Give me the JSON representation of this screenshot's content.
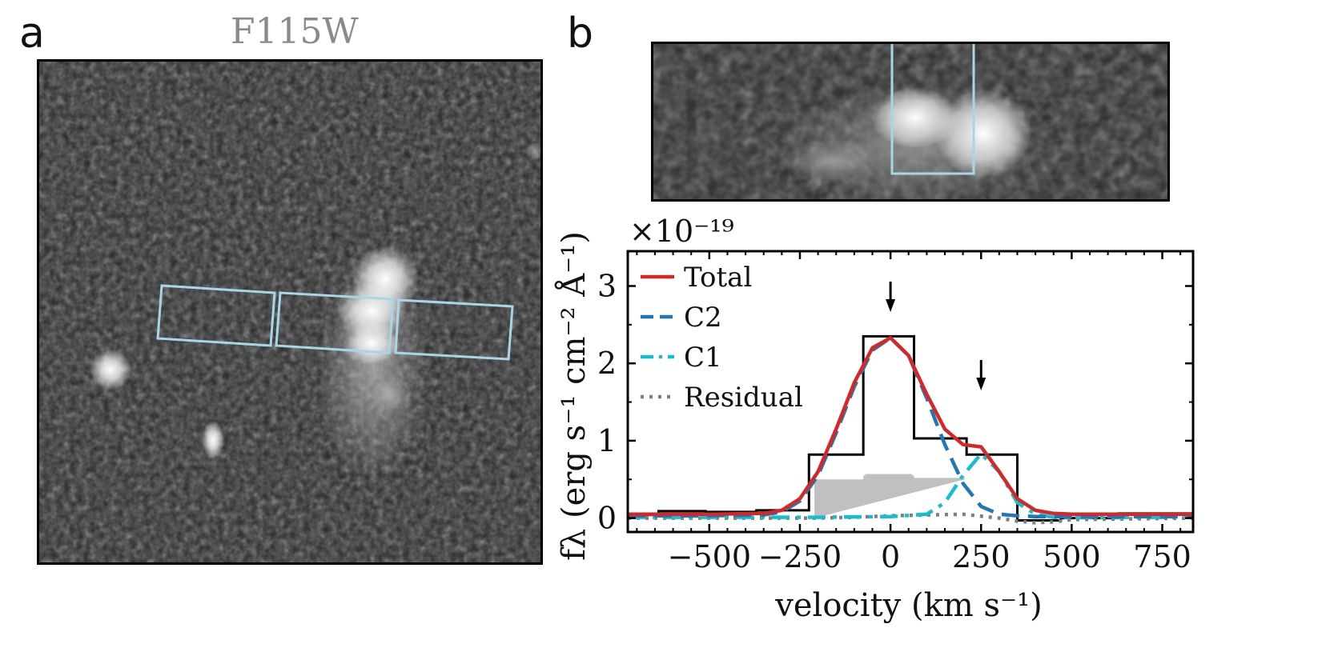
{
  "panel_a": {
    "letter": "a",
    "filter_label": "F115W"
  },
  "panel_b": {
    "letter": "b"
  },
  "chart_data": {
    "type": "line",
    "xlabel": "velocity (km s⁻¹)",
    "ylabel": "fλ (erg s⁻¹ cm⁻² Å⁻¹)",
    "y_multiplier": "×10⁻¹⁹",
    "xlim": [
      -725,
      835
    ],
    "ylim": [
      -0.18,
      3.45
    ],
    "xticks": [
      -500,
      -250,
      0,
      250,
      500,
      750
    ],
    "xtick_labels": [
      "−500",
      "−250",
      "0",
      "250",
      "500",
      "750"
    ],
    "yticks": [
      0,
      1,
      2,
      3
    ],
    "ytick_labels": [
      "0",
      "1",
      "2",
      "3"
    ],
    "legend_position": "top-left",
    "grid": false,
    "observed_histogram": {
      "edges": [
        -725,
        -640,
        -510,
        -370,
        -225,
        -75,
        65,
        210,
        350,
        470,
        630,
        835
      ],
      "values": [
        0.04,
        0.09,
        0.08,
        0.1,
        0.82,
        2.35,
        1.03,
        0.82,
        -0.03,
        0.0,
        0.06
      ]
    },
    "error_band": {
      "edges": [
        -210,
        -75,
        -70,
        60,
        65,
        205
      ],
      "values": [
        0.5,
        0.55,
        0.57,
        0.55,
        0.52,
        0.5
      ]
    },
    "series": [
      {
        "name": "Total",
        "color": "#d62728",
        "style": "solid",
        "x": [
          -725,
          -500,
          -350,
          -300,
          -250,
          -200,
          -150,
          -100,
          -50,
          0,
          50,
          100,
          150,
          200,
          250,
          300,
          350,
          400,
          450,
          500,
          650,
          835
        ],
        "y": [
          0.05,
          0.05,
          0.06,
          0.1,
          0.25,
          0.6,
          1.15,
          1.75,
          2.2,
          2.33,
          2.1,
          1.6,
          1.15,
          0.95,
          0.92,
          0.6,
          0.25,
          0.1,
          0.06,
          0.05,
          0.05,
          0.05
        ]
      },
      {
        "name": "C2",
        "color": "#1f77b4",
        "style": "dashed",
        "x": [
          -725,
          -500,
          -350,
          -300,
          -250,
          -200,
          -150,
          -100,
          -50,
          0,
          50,
          100,
          150,
          200,
          250,
          300,
          350,
          400,
          500,
          835
        ],
        "y": [
          0.03,
          0.03,
          0.04,
          0.08,
          0.22,
          0.55,
          1.1,
          1.7,
          2.17,
          2.33,
          2.1,
          1.55,
          0.95,
          0.45,
          0.15,
          0.05,
          0.03,
          0.02,
          0.02,
          0.02
        ]
      },
      {
        "name": "C1",
        "color": "#17becf",
        "style": "dashdot",
        "x": [
          -725,
          -200,
          0,
          100,
          150,
          200,
          250,
          300,
          350,
          400,
          450,
          835
        ],
        "y": [
          0.01,
          0.01,
          0.02,
          0.05,
          0.2,
          0.55,
          0.83,
          0.6,
          0.2,
          0.05,
          0.01,
          0.01
        ]
      },
      {
        "name": "Residual",
        "color": "#7f7f7f",
        "style": "dotted",
        "x": [
          -725,
          -200,
          -100,
          0,
          100,
          200,
          300,
          350,
          400,
          450,
          500,
          835
        ],
        "y": [
          0.0,
          0.0,
          0.01,
          0.03,
          0.04,
          0.05,
          0.0,
          -0.04,
          -0.06,
          -0.05,
          -0.02,
          0.0
        ]
      }
    ],
    "annotations": [
      {
        "type": "arrow",
        "x": 0
      },
      {
        "type": "arrow",
        "x": 250
      }
    ]
  }
}
